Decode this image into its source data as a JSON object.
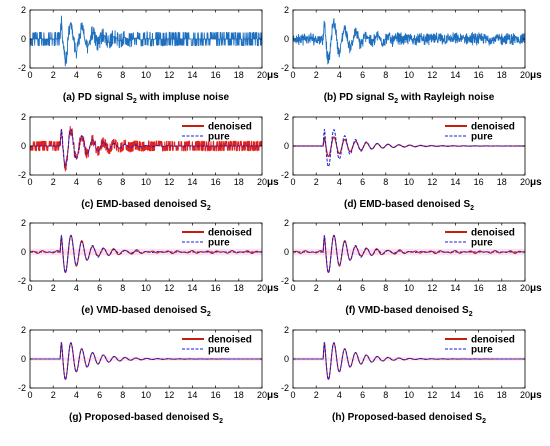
{
  "colors": {
    "noisy": "#1f6fbf",
    "noisy_red": "#e0201b",
    "denoised": "#c41e0f",
    "pure": "#1a1ad6",
    "pink_band": "#f7c9dc",
    "axis": "#000000"
  },
  "chart_data": [
    {
      "type": "line",
      "panel": "a",
      "xlim": [
        0,
        20
      ],
      "ylim": [
        -2,
        2
      ],
      "xticks": [
        "0",
        "2",
        "4",
        "6",
        "8",
        "10",
        "12",
        "14",
        "16",
        "18",
        "20"
      ],
      "yticks": [
        "2",
        "0",
        "-2"
      ],
      "x_unit": "μs",
      "caption_prefix": "(a)  PD signal S",
      "caption_sub": "2",
      "caption_suffix": " with impluse noise",
      "legend": [],
      "series": [
        {
          "role": "noisy",
          "noise": "impulse",
          "x_start": 2.6,
          "amplitude": 1.8,
          "freq": 1.07,
          "decay": 0.5
        }
      ]
    },
    {
      "type": "line",
      "panel": "b",
      "xlim": [
        0,
        20
      ],
      "ylim": [
        -2,
        2
      ],
      "xticks": [
        "0",
        "2",
        "4",
        "6",
        "8",
        "10",
        "12",
        "14",
        "16",
        "18",
        "20"
      ],
      "yticks": [
        "2",
        "0",
        "-2"
      ],
      "x_unit": "μs",
      "caption_prefix": "(b)  PD signal S",
      "caption_sub": "2",
      "caption_suffix": " with Rayleigh noise",
      "legend": [],
      "series": [
        {
          "role": "noisy",
          "noise": "rayleigh",
          "x_start": 2.6,
          "amplitude": 1.8,
          "freq": 1.07,
          "decay": 0.5
        }
      ]
    },
    {
      "type": "line",
      "panel": "c",
      "xlim": [
        0,
        20
      ],
      "ylim": [
        -2,
        2
      ],
      "xticks": [
        "0",
        "2",
        "4",
        "6",
        "8",
        "10",
        "12",
        "14",
        "16",
        "18",
        "20"
      ],
      "yticks": [
        "2",
        "0",
        "-2"
      ],
      "x_unit": "μs",
      "caption_prefix": "(c)  EMD-based denoised S",
      "caption_sub": "2",
      "caption_suffix": "",
      "legend": [
        "denoised",
        "pure"
      ],
      "series": [
        {
          "role": "denoised_impulse",
          "x_start": 2.6,
          "amplitude": 1.8,
          "freq": 1.07,
          "decay": 0.5
        },
        {
          "role": "pure",
          "x_start": 2.6,
          "amplitude": 1.8,
          "freq": 1.07,
          "decay": 0.5
        }
      ]
    },
    {
      "type": "line",
      "panel": "d",
      "xlim": [
        0,
        20
      ],
      "ylim": [
        -2,
        2
      ],
      "xticks": [
        "0",
        "2",
        "4",
        "6",
        "8",
        "10",
        "12",
        "14",
        "16",
        "18",
        "20"
      ],
      "yticks": [
        "2",
        "0",
        "-2"
      ],
      "x_unit": "μs",
      "caption_prefix": "(d)  EMD-based denoised S",
      "caption_sub": "2",
      "caption_suffix": "",
      "legend": [
        "denoised",
        "pure"
      ],
      "series": [
        {
          "role": "denoised_smooth",
          "x_start": 2.6,
          "amplitude": 0.9,
          "freq": 1.07,
          "decay": 0.35
        },
        {
          "role": "pure",
          "x_start": 2.6,
          "amplitude": 1.8,
          "freq": 1.07,
          "decay": 0.5
        }
      ]
    },
    {
      "type": "line",
      "panel": "e",
      "xlim": [
        0,
        20
      ],
      "ylim": [
        -2,
        2
      ],
      "xticks": [
        "0",
        "2",
        "4",
        "6",
        "8",
        "10",
        "12",
        "14",
        "16",
        "18",
        "20"
      ],
      "yticks": [
        "2",
        "0",
        "-2"
      ],
      "x_unit": "μs",
      "caption_prefix": "(e)  VMD-based denoised S",
      "caption_sub": "2",
      "caption_suffix": "",
      "legend": [
        "denoised",
        "pure"
      ],
      "series": [
        {
          "role": "denoised_wobble",
          "x_start": 2.6,
          "amplitude": 1.8,
          "freq": 1.07,
          "decay": 0.5
        },
        {
          "role": "pure",
          "x_start": 2.6,
          "amplitude": 1.8,
          "freq": 1.07,
          "decay": 0.5
        }
      ]
    },
    {
      "type": "line",
      "panel": "f",
      "xlim": [
        0,
        20
      ],
      "ylim": [
        -2,
        2
      ],
      "xticks": [
        "0",
        "2",
        "4",
        "6",
        "8",
        "10",
        "12",
        "14",
        "16",
        "18",
        "20"
      ],
      "yticks": [
        "2",
        "0",
        "-2"
      ],
      "x_unit": "μs",
      "caption_prefix": "(f)  VMD-based denoised S",
      "caption_sub": "2",
      "caption_suffix": "",
      "legend": [
        "denoised",
        "pure"
      ],
      "series": [
        {
          "role": "denoised_wobble",
          "x_start": 2.6,
          "amplitude": 1.8,
          "freq": 1.07,
          "decay": 0.5
        },
        {
          "role": "pure",
          "x_start": 2.6,
          "amplitude": 1.8,
          "freq": 1.07,
          "decay": 0.5
        }
      ]
    },
    {
      "type": "line",
      "panel": "g",
      "xlim": [
        0,
        20
      ],
      "ylim": [
        -2,
        2
      ],
      "xticks": [
        "0",
        "2",
        "4",
        "6",
        "8",
        "10",
        "12",
        "14",
        "16",
        "18",
        "20"
      ],
      "yticks": [
        "2",
        "0",
        "-2"
      ],
      "x_unit": "μs",
      "caption_prefix": "(g)  Proposed-based denoised S",
      "caption_sub": "2",
      "caption_suffix": "",
      "legend": [
        "denoised",
        "pure"
      ],
      "series": [
        {
          "role": "denoised_clean",
          "x_start": 2.6,
          "amplitude": 1.8,
          "freq": 1.07,
          "decay": 0.5
        },
        {
          "role": "pure",
          "x_start": 2.6,
          "amplitude": 1.8,
          "freq": 1.07,
          "decay": 0.5
        }
      ]
    },
    {
      "type": "line",
      "panel": "h",
      "xlim": [
        0,
        20
      ],
      "ylim": [
        -2,
        2
      ],
      "xticks": [
        "0",
        "2",
        "4",
        "6",
        "8",
        "10",
        "12",
        "14",
        "16",
        "18",
        "20"
      ],
      "yticks": [
        "2",
        "0",
        "-2"
      ],
      "x_unit": "μs",
      "caption_prefix": "(h)  Proposed-based denoised S",
      "caption_sub": "2",
      "caption_suffix": "",
      "legend": [
        "denoised",
        "pure"
      ],
      "series": [
        {
          "role": "denoised_clean",
          "x_start": 2.6,
          "amplitude": 1.8,
          "freq": 1.07,
          "decay": 0.5
        },
        {
          "role": "pure",
          "x_start": 2.6,
          "amplitude": 1.8,
          "freq": 1.07,
          "decay": 0.5
        }
      ]
    }
  ]
}
